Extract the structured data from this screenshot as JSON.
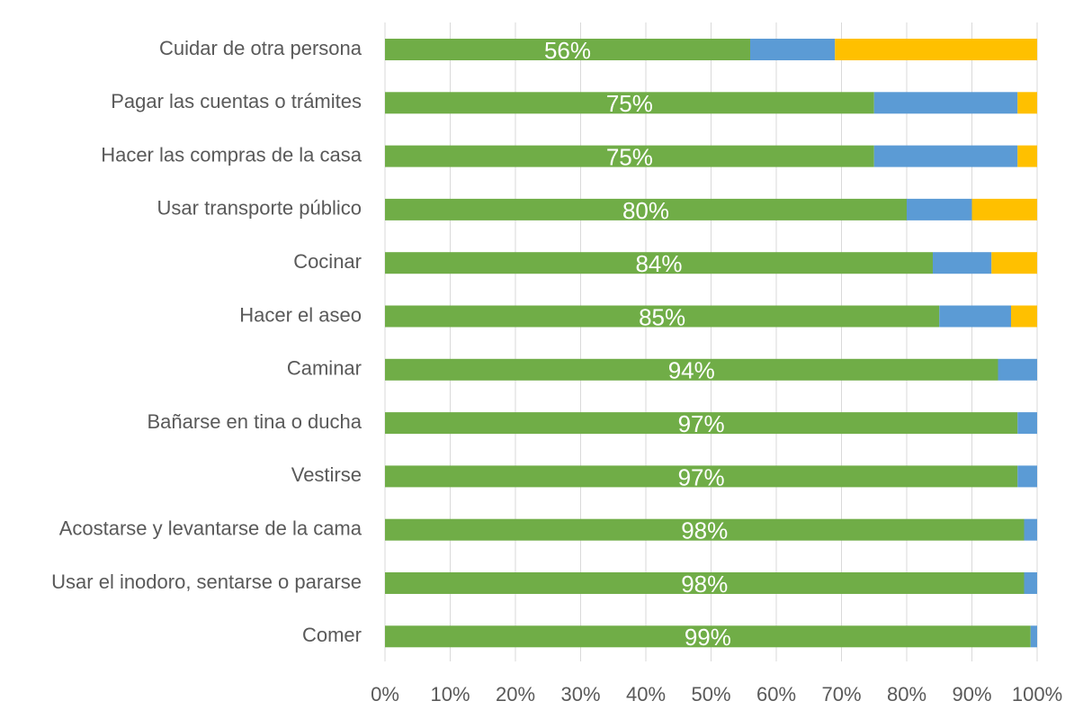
{
  "chart_data": {
    "type": "stacked-bar-horizontal",
    "categories": [
      "Cuidar de otra persona",
      "Pagar las cuentas o trámites",
      "Hacer las compras de la casa",
      "Usar transporte público",
      "Cocinar",
      "Hacer el aseo",
      "Caminar",
      "Bañarse en tina o ducha",
      "Vestirse",
      "Acostarse y levantarse de la cama",
      "Usar el inodoro, sentarse o pararse",
      "Comer"
    ],
    "series": [
      {
        "color": "#70ad47",
        "values": [
          56,
          75,
          75,
          80,
          84,
          85,
          94,
          97,
          97,
          98,
          98,
          99
        ],
        "value_labels": [
          "56%",
          "75%",
          "75%",
          "80%",
          "84%",
          "85%",
          "94%",
          "97%",
          "97%",
          "98%",
          "98%",
          "99%"
        ]
      },
      {
        "color": "#5b9bd5",
        "values": [
          13,
          22,
          22,
          10,
          9,
          11,
          6,
          3,
          3,
          2,
          2,
          1
        ]
      },
      {
        "color": "#ffc000",
        "values": [
          31,
          3,
          3,
          10,
          7,
          4,
          0,
          0,
          0,
          0,
          0,
          0
        ]
      }
    ],
    "xlim": [
      0,
      100
    ],
    "xticks": [
      {
        "value": 0,
        "label": "0%"
      },
      {
        "value": 10,
        "label": "10%"
      },
      {
        "value": 20,
        "label": "20%"
      },
      {
        "value": 30,
        "label": "30%"
      },
      {
        "value": 40,
        "label": "40%"
      },
      {
        "value": 50,
        "label": "50%"
      },
      {
        "value": 60,
        "label": "60%"
      },
      {
        "value": 70,
        "label": "70%"
      },
      {
        "value": 80,
        "label": "80%"
      },
      {
        "value": 90,
        "label": "90%"
      },
      {
        "value": 100,
        "label": "100%"
      }
    ],
    "grid": true
  }
}
